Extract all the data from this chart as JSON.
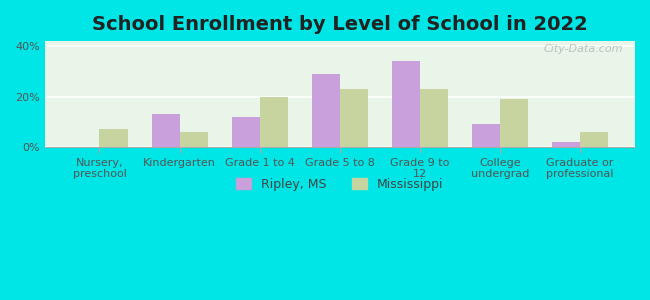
{
  "title": "School Enrollment by Level of School in 2022",
  "categories": [
    "Nursery,\npreschool",
    "Kindergarten",
    "Grade 1 to 4",
    "Grade 5 to 8",
    "Grade 9 to\n12",
    "College\nundergrad",
    "Graduate or\nprofessional"
  ],
  "ripley": [
    0.0,
    13.0,
    12.0,
    29.0,
    34.0,
    9.0,
    2.0
  ],
  "mississippi": [
    7.0,
    6.0,
    20.0,
    23.0,
    23.0,
    19.0,
    6.0
  ],
  "ripley_color": "#c9a0dc",
  "mississippi_color": "#c8d4a0",
  "background_color": "#00e5e5",
  "plot_bg_from": "#e8f5e8",
  "plot_bg_to": "#f5fff5",
  "ylabel_ticks": [
    "0%",
    "20%",
    "40%"
  ],
  "yticks": [
    0,
    20,
    40
  ],
  "ylim": [
    0,
    42
  ],
  "legend_ripley": "Ripley, MS",
  "legend_mississippi": "Mississippi",
  "bar_width": 0.35,
  "title_fontsize": 14,
  "tick_fontsize": 8,
  "legend_fontsize": 9
}
